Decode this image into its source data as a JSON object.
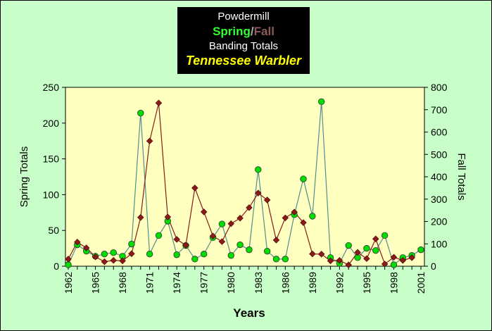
{
  "title": {
    "line1": "Powdermill",
    "spring_word": "Spring",
    "separator": "/",
    "fall_word": "Fall",
    "line3": "Banding Totals",
    "species": "Tennessee Warbler"
  },
  "chart_data": {
    "type": "line",
    "xlabel": "Years",
    "ylabel_left": "Spring Totals",
    "ylabel_right": "Fall Totals",
    "ylim_left": [
      0,
      250
    ],
    "ylim_right": [
      0,
      800
    ],
    "yticks_left": [
      0,
      50,
      100,
      150,
      200,
      250
    ],
    "yticks_right": [
      0,
      100,
      200,
      300,
      400,
      500,
      600,
      700,
      800
    ],
    "xticks": [
      "1962",
      "1965",
      "1968",
      "1971",
      "1974",
      "1977",
      "1980",
      "1983",
      "1986",
      "1989",
      "1992",
      "1995",
      "1998",
      "2001"
    ],
    "x": [
      1962,
      1963,
      1964,
      1965,
      1966,
      1967,
      1968,
      1969,
      1970,
      1971,
      1972,
      1973,
      1974,
      1975,
      1976,
      1977,
      1978,
      1979,
      1980,
      1981,
      1982,
      1983,
      1984,
      1985,
      1986,
      1987,
      1988,
      1989,
      1990,
      1991,
      1992,
      1993,
      1994,
      1995,
      1996,
      1997,
      1998,
      1999,
      2000,
      2001
    ],
    "series": [
      {
        "name": "Spring",
        "axis": "left",
        "color": "#00dd00",
        "line_color": "#4f8f8f",
        "marker": "circle",
        "values": [
          2,
          30,
          21,
          14,
          17,
          19,
          14,
          31,
          214,
          17,
          43,
          63,
          16,
          29,
          10,
          17,
          40,
          59,
          15,
          30,
          23,
          135,
          21,
          10,
          10,
          72,
          122,
          70,
          230,
          12,
          4,
          29,
          12,
          25,
          22,
          43,
          2,
          12,
          15,
          23
        ]
      },
      {
        "name": "Fall",
        "axis": "right",
        "color": "#8b1a1a",
        "line_color": "#8b1a1a",
        "marker": "diamond",
        "values": [
          32,
          108,
          82,
          42,
          20,
          26,
          24,
          56,
          218,
          560,
          730,
          220,
          120,
          94,
          350,
          243,
          135,
          110,
          190,
          215,
          262,
          327,
          296,
          117,
          216,
          242,
          195,
          55,
          54,
          24,
          26,
          6,
          62,
          34,
          122,
          10,
          40,
          26,
          38,
          null
        ]
      }
    ]
  }
}
